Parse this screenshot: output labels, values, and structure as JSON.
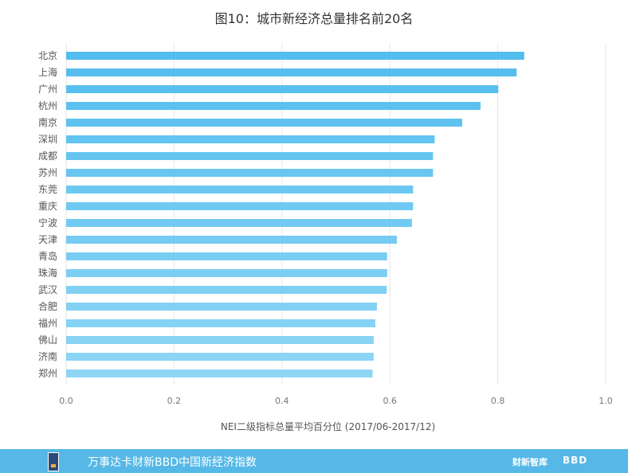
{
  "chart_data": {
    "type": "bar",
    "orientation": "horizontal",
    "title": "图10：城市新经济总量排名前20名",
    "xlabel": "NEI二级指标总量平均百分位 (2017/06-2017/12)",
    "ylabel": "",
    "xlim": [
      0,
      1.0
    ],
    "xticks": [
      "0.0",
      "0.2",
      "0.4",
      "0.6",
      "0.8",
      "1.0"
    ],
    "grid": "vertical",
    "categories": [
      "北京",
      "上海",
      "广州",
      "杭州",
      "南京",
      "深圳",
      "成都",
      "苏州",
      "东莞",
      "重庆",
      "宁波",
      "天津",
      "青岛",
      "珠海",
      "武汉",
      "合肥",
      "福州",
      "佛山",
      "济南",
      "郑州"
    ],
    "values": [
      0.849,
      0.835,
      0.801,
      0.768,
      0.734,
      0.683,
      0.68,
      0.68,
      0.643,
      0.643,
      0.641,
      0.613,
      0.595,
      0.595,
      0.594,
      0.576,
      0.573,
      0.57,
      0.57,
      0.568
    ],
    "colors": {
      "bar_top": "#52bdee",
      "bar_bottom": "#8fd6f5",
      "grid": "#e6e6e6"
    }
  },
  "footer": {
    "text": "万事达卡财新BBD中国新经济指数",
    "brand_1": "财新智库",
    "brand_2": "BBD",
    "background": "#55b8e6"
  }
}
